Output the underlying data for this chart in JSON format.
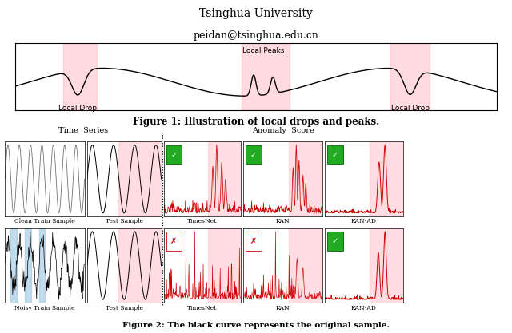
{
  "title_line1": "Tsinghua University",
  "title_line2": "peidan@tsinghua.edu.cn",
  "fig1_caption": "Figure 1: Illustration of local drops and peaks.",
  "fig2_caption": "Figure 2: The black curve represents the original sample.",
  "header_left": "Time  Series",
  "header_right": "Anomaly  Score",
  "label_clean_train": "Clean Train Sample",
  "label_noisy_train": "Noisy Train Sample",
  "label_test": "Test Sample",
  "label_timesnet": "TimesNet",
  "label_kan": "KAN",
  "label_kanad": "KAN-AD",
  "pink_color": "#FFB6C1",
  "pink_bg": "#FFCCD5",
  "blue_bg": "#ADD8E6",
  "red_color": "#CC0000",
  "green_color": "#228B22",
  "local_drop_text": "Local Drop",
  "local_peaks_text": "Local Peaks"
}
